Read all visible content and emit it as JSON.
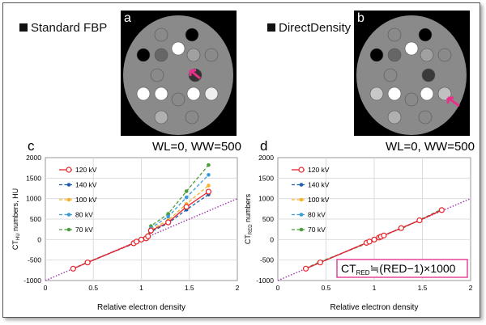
{
  "panels": {
    "a": {
      "letter": "a",
      "title": "Standard FBP",
      "window": "WL=0, WW=500"
    },
    "b": {
      "letter": "b",
      "title": "DirectDensity",
      "window": "WL=0, WW=500"
    }
  },
  "colors": {
    "120": "#e8232a",
    "140": "#1f5fa8",
    "100": "#f7b12a",
    "80": "#3b9ad8",
    "70": "#4c9e3a",
    "reference": "#a23fb0",
    "formula_box": "#e2288a",
    "arrow": "#e8318a"
  },
  "chart_data": [
    {
      "type": "line",
      "letter": "c",
      "window": "WL=0, WW=500",
      "xlabel": "Relative electron density",
      "ylabel": "CT",
      "ylabel_sub": "HU",
      "ylabel_suffix": " numbers, HU",
      "xlim": [
        0,
        2
      ],
      "ylim": [
        -1000,
        2000
      ],
      "xticks": [
        "0",
        "0.5",
        "1",
        "1.5",
        "2"
      ],
      "yticks": [
        "2000",
        "1500",
        "1000",
        "500",
        "0",
        "-500",
        "-1000"
      ],
      "grid": true,
      "legend": "top-left",
      "x": [
        0.29,
        0.44,
        0.92,
        0.95,
        1.0,
        1.05,
        1.07,
        1.1,
        1.28,
        1.47,
        1.7
      ],
      "series": [
        {
          "name": "120 kV",
          "key": "120",
          "style": "solid-open",
          "values": [
            -710,
            -560,
            -90,
            -50,
            0,
            30,
            80,
            220,
            420,
            800,
            1170
          ]
        },
        {
          "name": "140 kV",
          "key": "140",
          "style": "dashed",
          "values": [
            -710,
            -560,
            -95,
            -55,
            -5,
            25,
            70,
            190,
            400,
            730,
            1100
          ]
        },
        {
          "name": "100 kV",
          "key": "100",
          "style": "dashed",
          "values": [
            -710,
            -560,
            -90,
            -50,
            0,
            35,
            90,
            250,
            470,
            870,
            1320
          ]
        },
        {
          "name": "80 kV",
          "key": "80",
          "style": "dashed",
          "values": [
            -710,
            -555,
            -95,
            -50,
            0,
            40,
            100,
            280,
            560,
            1030,
            1580
          ]
        },
        {
          "name": "70 kV",
          "key": "70",
          "style": "dashed",
          "values": [
            -710,
            -550,
            -100,
            -50,
            0,
            45,
            110,
            330,
            630,
            1180,
            1820
          ]
        }
      ],
      "reference_line": {
        "x": [
          0,
          2
        ],
        "y": [
          -1000,
          1000
        ]
      }
    },
    {
      "type": "line",
      "letter": "d",
      "window": "WL=0, WW=500",
      "xlabel": "Relative electron density",
      "ylabel": "CT",
      "ylabel_sub": "RED",
      "ylabel_suffix": " numbers",
      "xlim": [
        0,
        2
      ],
      "ylim": [
        -1000,
        2000
      ],
      "xticks": [
        "0",
        "0.5",
        "1",
        "1.5",
        "2"
      ],
      "yticks": [
        "2000",
        "1500",
        "1000",
        "500",
        "0",
        "-500",
        "-1000"
      ],
      "grid": true,
      "legend": "top-left",
      "x": [
        0.29,
        0.44,
        0.92,
        0.95,
        1.0,
        1.05,
        1.07,
        1.1,
        1.28,
        1.47,
        1.7
      ],
      "series": [
        {
          "name": "120 kV",
          "key": "120",
          "style": "solid-open",
          "values": [
            -710,
            -560,
            -80,
            -50,
            0,
            50,
            70,
            100,
            280,
            470,
            720
          ]
        },
        {
          "name": "140 kV",
          "key": "140",
          "style": "dashed",
          "values": [
            -710,
            -560,
            -80,
            -50,
            0,
            50,
            70,
            100,
            280,
            470,
            720
          ]
        },
        {
          "name": "100 kV",
          "key": "100",
          "style": "dashed",
          "values": [
            -710,
            -560,
            -80,
            -50,
            0,
            50,
            70,
            100,
            280,
            470,
            720
          ]
        },
        {
          "name": "80 kV",
          "key": "80",
          "style": "dashed",
          "values": [
            -710,
            -560,
            -80,
            -50,
            0,
            50,
            70,
            100,
            280,
            470,
            720
          ]
        },
        {
          "name": "70 kV",
          "key": "70",
          "style": "dashed",
          "values": [
            -700,
            -540,
            -100,
            -60,
            0,
            40,
            80,
            120,
            260,
            480,
            740
          ]
        }
      ],
      "reference_line": {
        "x": [
          0,
          2
        ],
        "y": [
          -1000,
          1000
        ]
      },
      "annotation": {
        "pre": "CT",
        "sub": "RED",
        "post": "≒(RED−1)×1000"
      }
    }
  ]
}
